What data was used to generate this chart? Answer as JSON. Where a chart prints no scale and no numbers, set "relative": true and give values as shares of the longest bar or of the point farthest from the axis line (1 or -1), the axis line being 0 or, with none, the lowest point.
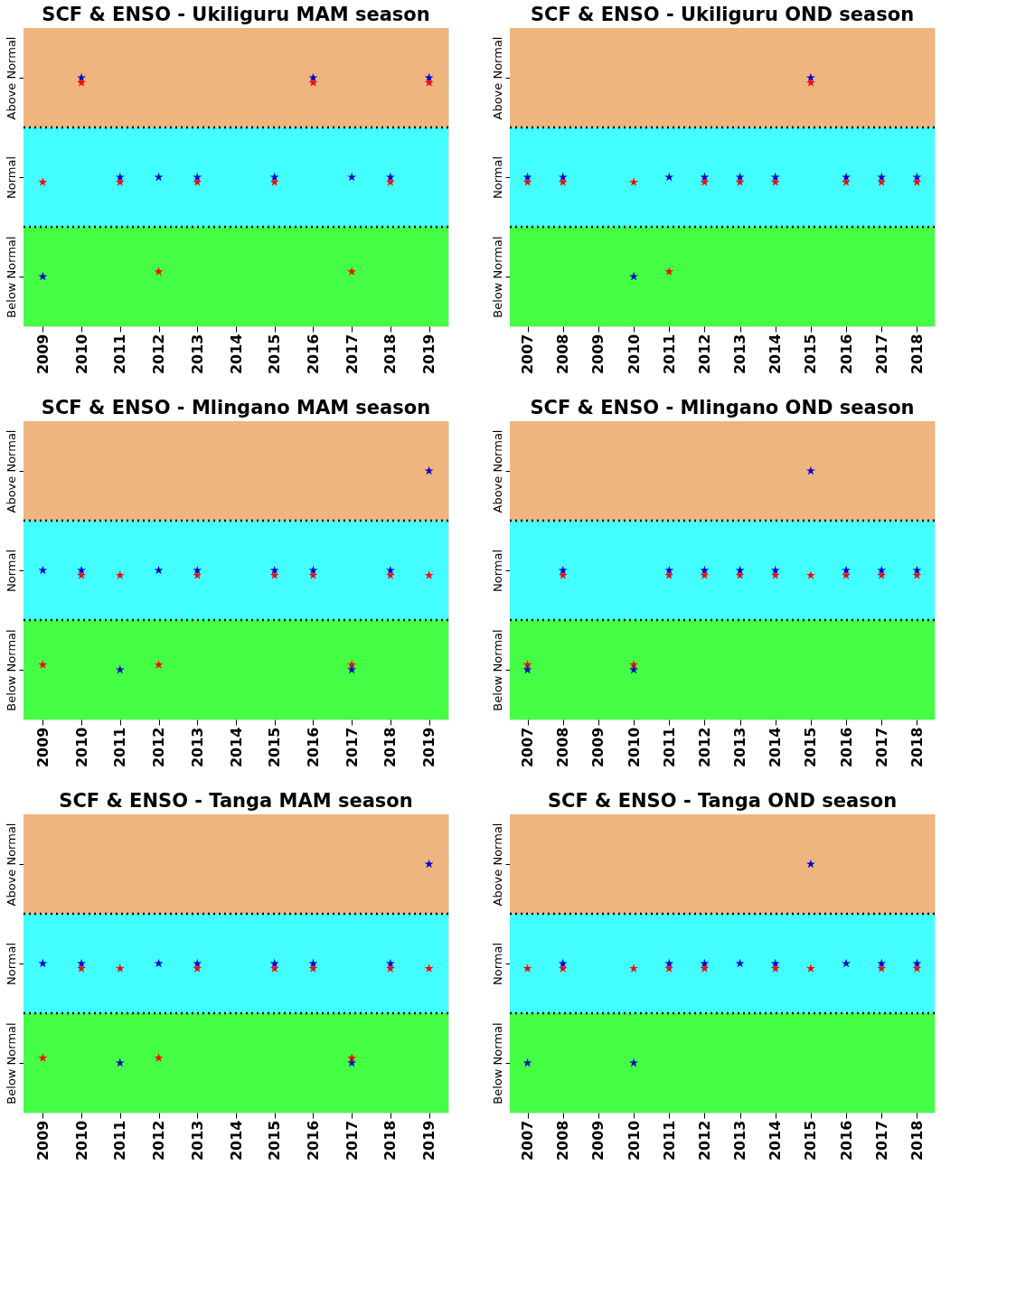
{
  "chart_data": [
    {
      "type": "scatter",
      "title": "SCF & ENSO - Ukiliguru MAM season",
      "categories": [
        "2009",
        "2010",
        "2011",
        "2012",
        "2013",
        "2014",
        "2015",
        "2016",
        "2017",
        "2018",
        "2019"
      ],
      "relative": true,
      "marker": "star",
      "bands": [
        {
          "axis": "y",
          "from": 0,
          "to": 0.4,
          "label": "Below Normal",
          "color": "#44ff44"
        },
        {
          "axis": "y",
          "from": 0.4,
          "to": 0.8,
          "label": "Normal",
          "color": "#44ffff"
        },
        {
          "axis": "y",
          "from": 0.8,
          "to": 1.2,
          "label": "Above Normal",
          "color": "#efb57f"
        }
      ],
      "ref_lines": [
        {
          "axis": "y",
          "value": 0.4,
          "line_style": "dotted"
        },
        {
          "axis": "y",
          "value": 0.8,
          "line_style": "dotted"
        }
      ],
      "series": [
        {
          "color": "#ff0000",
          "values": [
            0.58,
            0.98,
            0.58,
            0.22,
            0.58,
            null,
            0.58,
            0.98,
            0.22,
            0.58,
            0.98
          ]
        },
        {
          "color": "#0000cc",
          "values": [
            0.2,
            1,
            0.6,
            0.6,
            0.6,
            null,
            0.6,
            1,
            0.6,
            0.6,
            1
          ]
        }
      ]
    },
    {
      "type": "scatter",
      "title": "SCF & ENSO - Ukiliguru OND season",
      "categories": [
        "2007",
        "2008",
        "2009",
        "2010",
        "2011",
        "2012",
        "2013",
        "2014",
        "2015",
        "2016",
        "2017",
        "2018"
      ],
      "relative": true,
      "marker": "star",
      "bands": [
        {
          "axis": "y",
          "from": 0,
          "to": 0.4,
          "label": "Below Normal",
          "color": "#44ff44"
        },
        {
          "axis": "y",
          "from": 0.4,
          "to": 0.8,
          "label": "Normal",
          "color": "#44ffff"
        },
        {
          "axis": "y",
          "from": 0.8,
          "to": 1.2,
          "label": "Above Normal",
          "color": "#efb57f"
        }
      ],
      "ref_lines": [
        {
          "axis": "y",
          "value": 0.4,
          "line_style": "dotted"
        },
        {
          "axis": "y",
          "value": 0.8,
          "line_style": "dotted"
        }
      ],
      "series": [
        {
          "color": "#ff0000",
          "values": [
            0.58,
            0.58,
            null,
            0.58,
            0.22,
            0.58,
            0.58,
            0.58,
            0.98,
            0.58,
            0.58,
            0.58
          ]
        },
        {
          "color": "#0000cc",
          "values": [
            0.6,
            0.6,
            null,
            0.2,
            0.6,
            0.6,
            0.6,
            0.6,
            1,
            0.6,
            0.6,
            0.6
          ]
        }
      ]
    },
    {
      "type": "scatter",
      "title": "SCF  & ENSO - Mlingano MAM season",
      "categories": [
        "2009",
        "2010",
        "2011",
        "2012",
        "2013",
        "2014",
        "2015",
        "2016",
        "2017",
        "2018",
        "2019"
      ],
      "relative": true,
      "marker": "star",
      "bands": [
        {
          "axis": "y",
          "from": 0,
          "to": 0.4,
          "label": "Below Normal",
          "color": "#44ff44"
        },
        {
          "axis": "y",
          "from": 0.4,
          "to": 0.8,
          "label": "Normal",
          "color": "#44ffff"
        },
        {
          "axis": "y",
          "from": 0.8,
          "to": 1.2,
          "label": "Above Normal",
          "color": "#efb57f"
        }
      ],
      "ref_lines": [
        {
          "axis": "y",
          "value": 0.4,
          "line_style": "dotted"
        },
        {
          "axis": "y",
          "value": 0.8,
          "line_style": "dotted"
        }
      ],
      "series": [
        {
          "color": "#ff0000",
          "values": [
            0.22,
            0.58,
            0.58,
            0.22,
            0.58,
            null,
            0.58,
            0.58,
            0.22,
            0.58,
            0.58
          ]
        },
        {
          "color": "#0000cc",
          "values": [
            0.6,
            0.6,
            0.2,
            0.6,
            0.6,
            null,
            0.6,
            0.6,
            0.2,
            0.6,
            1
          ]
        }
      ]
    },
    {
      "type": "scatter",
      "title": "SCF  & ENSO - Mlingano OND season",
      "categories": [
        "2007",
        "2008",
        "2009",
        "2010",
        "2011",
        "2012",
        "2013",
        "2014",
        "2015",
        "2016",
        "2017",
        "2018"
      ],
      "relative": true,
      "marker": "star",
      "bands": [
        {
          "axis": "y",
          "from": 0,
          "to": 0.4,
          "label": "Below Normal",
          "color": "#44ff44"
        },
        {
          "axis": "y",
          "from": 0.4,
          "to": 0.8,
          "label": "Normal",
          "color": "#44ffff"
        },
        {
          "axis": "y",
          "from": 0.8,
          "to": 1.2,
          "label": "Above Normal",
          "color": "#efb57f"
        }
      ],
      "ref_lines": [
        {
          "axis": "y",
          "value": 0.4,
          "line_style": "dotted"
        },
        {
          "axis": "y",
          "value": 0.8,
          "line_style": "dotted"
        }
      ],
      "series": [
        {
          "color": "#ff0000",
          "values": [
            0.22,
            0.58,
            null,
            0.22,
            0.58,
            0.58,
            0.58,
            0.58,
            0.58,
            0.58,
            0.58,
            0.58
          ]
        },
        {
          "color": "#0000cc",
          "values": [
            0.2,
            0.6,
            null,
            0.2,
            0.6,
            0.6,
            0.6,
            0.6,
            1,
            0.6,
            0.6,
            0.6
          ]
        }
      ]
    },
    {
      "type": "scatter",
      "title": "SCF  & ENSO - Tanga MAM season",
      "categories": [
        "2009",
        "2010",
        "2011",
        "2012",
        "2013",
        "2014",
        "2015",
        "2016",
        "2017",
        "2018",
        "2019"
      ],
      "relative": true,
      "marker": "star",
      "bands": [
        {
          "axis": "y",
          "from": 0,
          "to": 0.4,
          "label": "Below Normal",
          "color": "#44ff44"
        },
        {
          "axis": "y",
          "from": 0.4,
          "to": 0.8,
          "label": "Normal",
          "color": "#44ffff"
        },
        {
          "axis": "y",
          "from": 0.8,
          "to": 1.2,
          "label": "Above Normal",
          "color": "#efb57f"
        }
      ],
      "ref_lines": [
        {
          "axis": "y",
          "value": 0.4,
          "line_style": "dotted"
        },
        {
          "axis": "y",
          "value": 0.8,
          "line_style": "dotted"
        }
      ],
      "series": [
        {
          "color": "#ff0000",
          "values": [
            0.22,
            0.58,
            0.58,
            0.22,
            0.58,
            null,
            0.58,
            0.58,
            0.22,
            0.58,
            0.58
          ]
        },
        {
          "color": "#0000cc",
          "values": [
            0.6,
            0.6,
            0.2,
            0.6,
            0.6,
            null,
            0.6,
            0.6,
            0.2,
            0.6,
            1
          ]
        }
      ]
    },
    {
      "type": "scatter",
      "title": "SCF  & ENSO - Tanga OND season",
      "categories": [
        "2007",
        "2008",
        "2009",
        "2010",
        "2011",
        "2012",
        "2013",
        "2014",
        "2015",
        "2016",
        "2017",
        "2018"
      ],
      "relative": true,
      "marker": "star",
      "bands": [
        {
          "axis": "y",
          "from": 0,
          "to": 0.4,
          "label": "Below Normal",
          "color": "#44ff44"
        },
        {
          "axis": "y",
          "from": 0.4,
          "to": 0.8,
          "label": "Normal",
          "color": "#44ffff"
        },
        {
          "axis": "y",
          "from": 0.8,
          "to": 1.2,
          "label": "Above Normal",
          "color": "#efb57f"
        }
      ],
      "ref_lines": [
        {
          "axis": "y",
          "value": 0.4,
          "line_style": "dotted"
        },
        {
          "axis": "y",
          "value": 0.8,
          "line_style": "dotted"
        }
      ],
      "series": [
        {
          "color": "#ff0000",
          "values": [
            0.58,
            0.58,
            null,
            0.58,
            0.58,
            0.58,
            null,
            0.58,
            0.58,
            null,
            0.58,
            0.58
          ]
        },
        {
          "color": "#0000cc",
          "values": [
            0.2,
            0.6,
            null,
            0.2,
            0.6,
            0.6,
            0.6,
            0.6,
            1,
            0.6,
            0.6,
            0.6
          ]
        }
      ]
    }
  ]
}
